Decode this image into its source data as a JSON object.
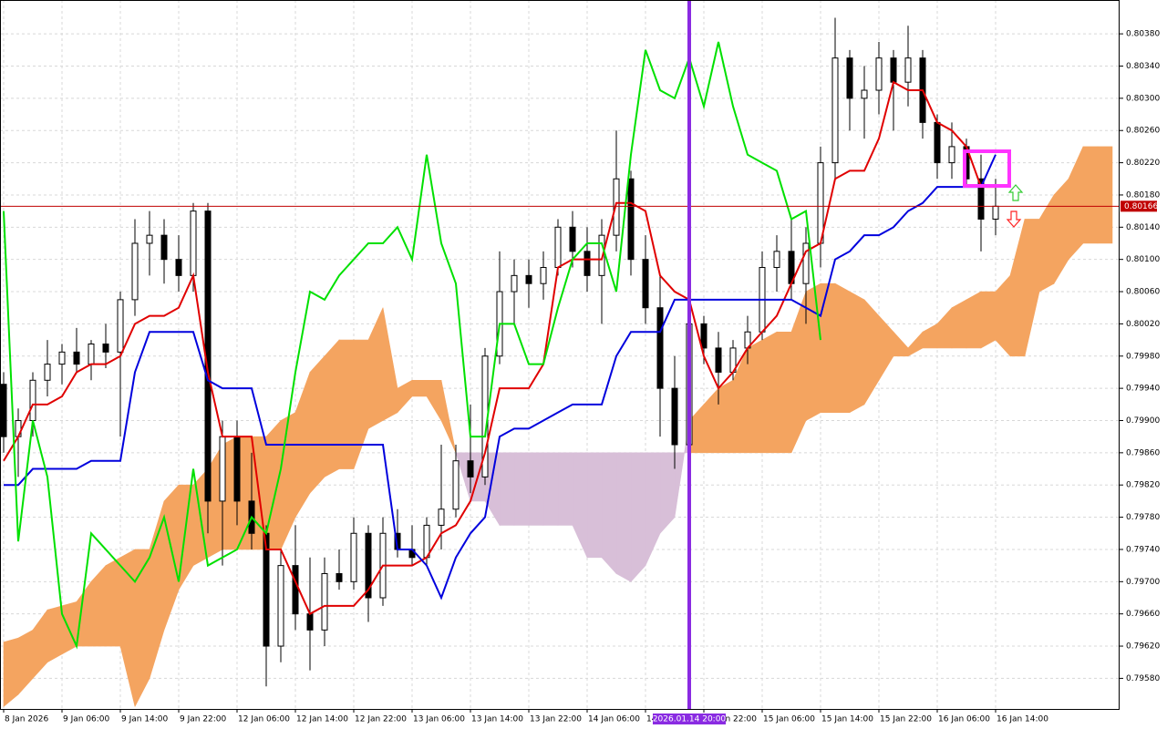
{
  "chart_data": {
    "type": "candlestick",
    "xlim": [
      -0.25,
      76.5
    ],
    "ylim": [
      0.79542,
      0.80422
    ],
    "grid": true,
    "up_color": "#ffffff",
    "down_color": "#000000",
    "xticks": [
      {
        "value": 0,
        "label": "8 Jan 2026"
      },
      {
        "value": 4,
        "label": "9 Jan 06:00"
      },
      {
        "value": 8,
        "label": "9 Jan 14:00"
      },
      {
        "value": 12,
        "label": "9 Jan 22:00"
      },
      {
        "value": 16,
        "label": "12 Jan 06:00"
      },
      {
        "value": 20,
        "label": "12 Jan 14:00"
      },
      {
        "value": 24,
        "label": "12 Jan 22:00"
      },
      {
        "value": 28,
        "label": "13 Jan 06:00"
      },
      {
        "value": 32,
        "label": "13 Jan 14:00"
      },
      {
        "value": 36,
        "label": "13 Jan 22:00"
      },
      {
        "value": 40,
        "label": "14 Jan 06:00"
      },
      {
        "value": 44,
        "label": "14 Jan 14:00"
      },
      {
        "value": 48,
        "label": "14 Jan 22:00"
      },
      {
        "value": 52,
        "label": "15 Jan 06:00"
      },
      {
        "value": 56,
        "label": "15 Jan 14:00"
      },
      {
        "value": 60,
        "label": "15 Jan 22:00"
      },
      {
        "value": 64,
        "label": "16 Jan 06:00"
      },
      {
        "value": 68,
        "label": "16 Jan 14:00"
      }
    ],
    "yticks": [
      {
        "value": 0.8038,
        "label": "0.80380"
      },
      {
        "value": 0.8034,
        "label": "0.80340"
      },
      {
        "value": 0.803,
        "label": "0.80300"
      },
      {
        "value": 0.8026,
        "label": "0.80260"
      },
      {
        "value": 0.8022,
        "label": "0.80220"
      },
      {
        "value": 0.8018,
        "label": "0.80180"
      },
      {
        "value": 0.8014,
        "label": "0.80140"
      },
      {
        "value": 0.801,
        "label": "0.80100"
      },
      {
        "value": 0.8006,
        "label": "0.80060"
      },
      {
        "value": 0.8002,
        "label": "0.80020"
      },
      {
        "value": 0.7998,
        "label": "0.79980"
      },
      {
        "value": 0.7994,
        "label": "0.79940"
      },
      {
        "value": 0.799,
        "label": "0.79900"
      },
      {
        "value": 0.7986,
        "label": "0.79860"
      },
      {
        "value": 0.7982,
        "label": "0.79820"
      },
      {
        "value": 0.7978,
        "label": "0.79780"
      },
      {
        "value": 0.7974,
        "label": "0.79740"
      },
      {
        "value": 0.797,
        "label": "0.79700"
      },
      {
        "value": 0.7966,
        "label": "0.79660"
      },
      {
        "value": 0.7962,
        "label": "0.79620"
      },
      {
        "value": 0.7958,
        "label": "0.79580"
      }
    ],
    "ohlc": [
      [
        0.79945,
        0.7996,
        0.7986,
        0.7988
      ],
      [
        0.7988,
        0.79915,
        0.7983,
        0.799
      ],
      [
        0.799,
        0.7996,
        0.7988,
        0.7995
      ],
      [
        0.7995,
        0.8,
        0.7993,
        0.7997
      ],
      [
        0.7997,
        0.79995,
        0.79945,
        0.79985
      ],
      [
        0.79985,
        0.80015,
        0.7996,
        0.7997
      ],
      [
        0.7997,
        0.8,
        0.7995,
        0.79995
      ],
      [
        0.79995,
        0.8002,
        0.79965,
        0.79985
      ],
      [
        0.79985,
        0.8006,
        0.7988,
        0.8005
      ],
      [
        0.8005,
        0.8015,
        0.8003,
        0.8012
      ],
      [
        0.8012,
        0.8016,
        0.8008,
        0.8013
      ],
      [
        0.8013,
        0.8015,
        0.8007,
        0.801
      ],
      [
        0.801,
        0.8013,
        0.8006,
        0.8008
      ],
      [
        0.8008,
        0.8017,
        0.8006,
        0.8016
      ],
      [
        0.8016,
        0.8017,
        0.7976,
        0.798
      ],
      [
        0.798,
        0.799,
        0.7972,
        0.7988
      ],
      [
        0.7988,
        0.799,
        0.7977,
        0.798
      ],
      [
        0.798,
        0.7986,
        0.7974,
        0.7976
      ],
      [
        0.7976,
        0.7977,
        0.7957,
        0.7962
      ],
      [
        0.7962,
        0.7974,
        0.796,
        0.7972
      ],
      [
        0.7972,
        0.7977,
        0.7964,
        0.7966
      ],
      [
        0.7966,
        0.7973,
        0.7959,
        0.7964
      ],
      [
        0.7964,
        0.7973,
        0.7962,
        0.7971
      ],
      [
        0.7971,
        0.7974,
        0.7969,
        0.797
      ],
      [
        0.797,
        0.7978,
        0.7969,
        0.7976
      ],
      [
        0.7976,
        0.7977,
        0.7965,
        0.7968
      ],
      [
        0.7968,
        0.7978,
        0.7967,
        0.7976
      ],
      [
        0.7976,
        0.7979,
        0.7973,
        0.7974
      ],
      [
        0.7974,
        0.7977,
        0.7972,
        0.7973
      ],
      [
        0.7973,
        0.7978,
        0.7972,
        0.7977
      ],
      [
        0.7977,
        0.7987,
        0.7974,
        0.7979
      ],
      [
        0.7979,
        0.7987,
        0.7978,
        0.7985
      ],
      [
        0.7985,
        0.7992,
        0.7981,
        0.7983
      ],
      [
        0.7983,
        0.7999,
        0.7982,
        0.7998
      ],
      [
        0.7998,
        0.8011,
        0.7997,
        0.8006
      ],
      [
        0.8006,
        0.801,
        0.8002,
        0.8008
      ],
      [
        0.8008,
        0.801,
        0.8004,
        0.8007
      ],
      [
        0.8007,
        0.8011,
        0.8005,
        0.8009
      ],
      [
        0.8009,
        0.8015,
        0.8008,
        0.8014
      ],
      [
        0.8014,
        0.8016,
        0.8009,
        0.8011
      ],
      [
        0.8011,
        0.8014,
        0.8006,
        0.8008
      ],
      [
        0.8008,
        0.8015,
        0.8002,
        0.8013
      ],
      [
        0.8013,
        0.8026,
        0.8011,
        0.802
      ],
      [
        0.802,
        0.8021,
        0.8008,
        0.801
      ],
      [
        0.801,
        0.8013,
        0.8002,
        0.8004
      ],
      [
        0.8004,
        0.8008,
        0.7988,
        0.7994
      ],
      [
        0.7994,
        0.7998,
        0.7984,
        0.7987
      ],
      [
        0.7987,
        0.8004,
        0.7986,
        0.8002
      ],
      [
        0.8002,
        0.8003,
        0.7997,
        0.7999
      ],
      [
        0.7999,
        0.8001,
        0.7992,
        0.7996
      ],
      [
        0.7996,
        0.8,
        0.7995,
        0.7999
      ],
      [
        0.7999,
        0.8003,
        0.7997,
        0.8001
      ],
      [
        0.8001,
        0.8011,
        0.8,
        0.8009
      ],
      [
        0.8009,
        0.8013,
        0.8006,
        0.8011
      ],
      [
        0.8011,
        0.8015,
        0.8005,
        0.8007
      ],
      [
        0.8007,
        0.8014,
        0.8002,
        0.8012
      ],
      [
        0.8012,
        0.8024,
        0.8009,
        0.8022
      ],
      [
        0.8022,
        0.804,
        0.802,
        0.8035
      ],
      [
        0.8035,
        0.8036,
        0.8026,
        0.803
      ],
      [
        0.803,
        0.8034,
        0.8025,
        0.8031
      ],
      [
        0.8031,
        0.8037,
        0.8028,
        0.8035
      ],
      [
        0.8035,
        0.8036,
        0.8026,
        0.8032
      ],
      [
        0.8032,
        0.8039,
        0.8029,
        0.8035
      ],
      [
        0.8035,
        0.8036,
        0.8025,
        0.8027
      ],
      [
        0.8027,
        0.8028,
        0.802,
        0.8022
      ],
      [
        0.8022,
        0.8027,
        0.802,
        0.8024
      ],
      [
        0.8024,
        0.8025,
        0.8019,
        0.802
      ],
      [
        0.802,
        0.8023,
        0.8011,
        0.8015
      ],
      [
        0.8015,
        0.802,
        0.8013,
        0.80166
      ]
    ],
    "lines": [
      {
        "color": "#e00000",
        "values": [
          0.7985,
          0.7988,
          0.7992,
          0.7992,
          0.7993,
          0.7996,
          0.7997,
          0.7997,
          0.7998,
          0.8002,
          0.8003,
          0.8003,
          0.8004,
          0.8008,
          0.7996,
          0.7988,
          0.7988,
          0.7988,
          0.7974,
          0.7974,
          0.797,
          0.7966,
          0.7967,
          0.7967,
          0.7967,
          0.7969,
          0.7972,
          0.7972,
          0.7972,
          0.7973,
          0.7976,
          0.7977,
          0.798,
          0.7986,
          0.7994,
          0.7994,
          0.7994,
          0.7997,
          0.8009,
          0.801,
          0.801,
          0.801,
          0.8017,
          0.8017,
          0.8016,
          0.8008,
          0.8006,
          0.8005,
          0.7998,
          0.7994,
          0.7996,
          0.7999,
          0.8001,
          0.8003,
          0.8007,
          0.8011,
          0.8012,
          0.802,
          0.8021,
          0.8021,
          0.8025,
          0.8032,
          0.8031,
          0.8031,
          0.8027,
          0.8026,
          0.8024,
          0.8019,
          0.8019
        ]
      },
      {
        "color": "#0000dd",
        "values": [
          0.7982,
          0.7982,
          0.7984,
          0.7984,
          0.7984,
          0.7984,
          0.7985,
          0.7985,
          0.7985,
          0.7996,
          0.8001,
          0.8001,
          0.8001,
          0.8001,
          0.7995,
          0.7994,
          0.7994,
          0.7994,
          0.7987,
          0.7987,
          0.7987,
          0.7987,
          0.7987,
          0.7987,
          0.7987,
          0.7987,
          0.7987,
          0.7974,
          0.7974,
          0.7972,
          0.7968,
          0.7973,
          0.7976,
          0.7978,
          0.7988,
          0.7989,
          0.7989,
          0.799,
          0.7991,
          0.7992,
          0.7992,
          0.7992,
          0.7998,
          0.8001,
          0.8001,
          0.8001,
          0.8005,
          0.8005,
          0.8005,
          0.8005,
          0.8005,
          0.8005,
          0.8005,
          0.8005,
          0.8005,
          0.8004,
          0.8003,
          0.801,
          0.8011,
          0.8013,
          0.8013,
          0.8014,
          0.8016,
          0.8017,
          0.8019,
          0.8019,
          0.8019,
          0.8019,
          0.8023
        ]
      },
      {
        "color": "#00e000",
        "values": [
          0.8016,
          0.7975,
          0.799,
          0.7983,
          0.7966,
          0.7962,
          0.7976,
          0.7974,
          0.7972,
          0.797,
          0.7973,
          0.7978,
          0.797,
          0.7984,
          0.7972,
          0.7973,
          0.7974,
          0.7978,
          0.7976,
          0.7984,
          0.7996,
          0.8006,
          0.8005,
          0.8008,
          0.801,
          0.8012,
          0.8012,
          0.8014,
          0.801,
          0.8023,
          0.8012,
          0.8007,
          0.7988,
          0.7988,
          0.8002,
          0.8002,
          0.7997,
          0.7997,
          0.8004,
          0.801,
          0.8012,
          0.8012,
          0.8006,
          0.8023,
          0.8036,
          0.8031,
          0.803,
          0.8035,
          0.8029,
          0.8037,
          0.8029,
          0.8023,
          0.8022,
          0.8021,
          0.8015,
          0.8016,
          0.8
        ]
      }
    ],
    "cloud": {
      "bull_color": "#f4a460",
      "bear_color": "#d8bfd8",
      "span_a": [
        0.79625,
        0.7963,
        0.7964,
        0.79665,
        0.7967,
        0.79675,
        0.797,
        0.7972,
        0.7973,
        0.7974,
        0.7974,
        0.798,
        0.7982,
        0.7982,
        0.7984,
        0.7987,
        0.7988,
        0.7988,
        0.7988,
        0.799,
        0.7991,
        0.7996,
        0.7998,
        0.8,
        0.8,
        0.8,
        0.8004,
        0.7994,
        0.7995,
        0.7995,
        0.7995,
        0.7986,
        0.798,
        0.798,
        0.7977,
        0.7977,
        0.7977,
        0.7977,
        0.7977,
        0.7977,
        0.7973,
        0.7973,
        0.7971,
        0.797,
        0.7972,
        0.7976,
        0.7978,
        0.799,
        0.7992,
        0.7994,
        0.7995,
        0.7999,
        0.8,
        0.8001,
        0.8001,
        0.8006,
        0.8007,
        0.8007,
        0.8006,
        0.8005,
        0.8003,
        0.8001,
        0.7999,
        0.8001,
        0.8002,
        0.8004,
        0.8005,
        0.8006,
        0.8006,
        0.8008,
        0.8015,
        0.8015,
        0.8018,
        0.802,
        0.8024,
        0.8024,
        0.8024
      ],
      "span_b": [
        0.79545,
        0.7956,
        0.7958,
        0.796,
        0.7961,
        0.7962,
        0.7962,
        0.7962,
        0.7962,
        0.79545,
        0.7958,
        0.7964,
        0.7969,
        0.7972,
        0.7973,
        0.7974,
        0.7974,
        0.7974,
        0.7974,
        0.7974,
        0.7978,
        0.7981,
        0.7983,
        0.7984,
        0.7984,
        0.7989,
        0.799,
        0.7991,
        0.7993,
        0.7993,
        0.799,
        0.7986,
        0.7986,
        0.7986,
        0.7986,
        0.7986,
        0.7986,
        0.7986,
        0.7986,
        0.7986,
        0.7986,
        0.7986,
        0.7986,
        0.7986,
        0.7986,
        0.7986,
        0.7986,
        0.7986,
        0.7986,
        0.7986,
        0.7986,
        0.7986,
        0.7986,
        0.7986,
        0.7986,
        0.799,
        0.7991,
        0.7991,
        0.7991,
        0.7992,
        0.7995,
        0.7998,
        0.7998,
        0.7999,
        0.7999,
        0.7999,
        0.7999,
        0.7999,
        0.8,
        0.7998,
        0.7998,
        0.8006,
        0.8007,
        0.801,
        0.8012,
        0.8012,
        0.8012
      ]
    },
    "price_line": {
      "value": 0.80166,
      "color": "#c00000"
    },
    "vline": {
      "value": 47,
      "label": "2026.01.14 20:00",
      "color": "#8a2be2"
    }
  }
}
